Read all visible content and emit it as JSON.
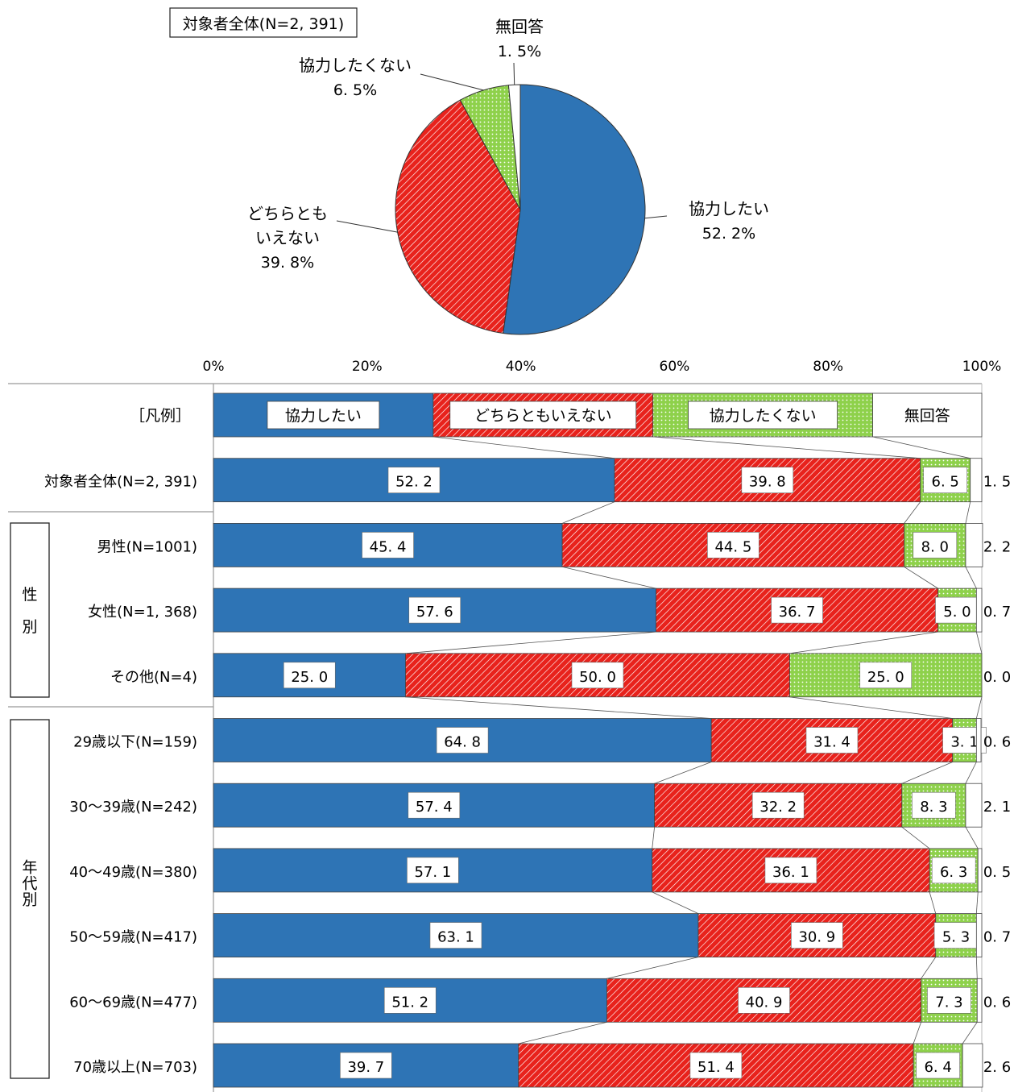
{
  "chart_data": [
    {
      "type": "pie",
      "title": "対象者全体(N=2, 391)",
      "unit": "%",
      "slices": [
        {
          "key": "yes",
          "name": "協力したい",
          "value": 52.2,
          "label_value": "52. 2%"
        },
        {
          "key": "neither",
          "name": "どちらとも\nいえない",
          "value": 39.8,
          "label_value": "39. 8%"
        },
        {
          "key": "no",
          "name": "協力したくない",
          "value": 6.5,
          "label_value": "6. 5%"
        },
        {
          "key": "na",
          "name": "無回答",
          "value": 1.5,
          "label_value": "1. 5%"
        }
      ]
    },
    {
      "type": "bar",
      "orientation": "horizontal",
      "stacked": true,
      "xlim": [
        0,
        100
      ],
      "x_ticks": [
        "0%",
        "20%",
        "40%",
        "60%",
        "80%",
        "100%"
      ],
      "legend_row_label": "［凡例］",
      "legend": [
        {
          "key": "yes",
          "name": "協力したい"
        },
        {
          "key": "neither",
          "name": "どちらともいえない"
        },
        {
          "key": "no",
          "name": "協力したくない"
        },
        {
          "key": "na",
          "name": "無回答"
        }
      ],
      "groups": [
        {
          "label": "性\n別"
        },
        {
          "label": "年\n代\n別"
        }
      ],
      "categories": [
        {
          "label": "対象者全体(N=2, 391)",
          "values": [
            52.2,
            39.8,
            6.5,
            1.5
          ],
          "display": [
            "52. 2",
            "39. 8",
            "6. 5",
            "1. 5"
          ]
        },
        {
          "label": "男性(N=1001)",
          "values": [
            45.4,
            44.5,
            8.0,
            2.2
          ],
          "display": [
            "45. 4",
            "44. 5",
            "8. 0",
            "2. 2"
          ]
        },
        {
          "label": "女性(N=1, 368)",
          "values": [
            57.6,
            36.7,
            5.0,
            0.7
          ],
          "display": [
            "57. 6",
            "36. 7",
            "5. 0",
            "0. 7"
          ]
        },
        {
          "label": "その他(N=4)",
          "values": [
            25.0,
            50.0,
            25.0,
            0.0
          ],
          "display": [
            "25. 0",
            "50. 0",
            "25. 0",
            "0. 0"
          ]
        },
        {
          "label": "29歳以下(N=159)",
          "values": [
            64.8,
            31.4,
            3.1,
            0.6
          ],
          "display": [
            "64. 8",
            "31. 4",
            "3. 1",
            "0. 6"
          ]
        },
        {
          "label": "30～39歳(N=242)",
          "values": [
            57.4,
            32.2,
            8.3,
            2.1
          ],
          "display": [
            "57. 4",
            "32. 2",
            "8. 3",
            "2. 1"
          ]
        },
        {
          "label": "40～49歳(N=380)",
          "values": [
            57.1,
            36.1,
            6.3,
            0.5
          ],
          "display": [
            "57. 1",
            "36. 1",
            "6. 3",
            "0. 5"
          ]
        },
        {
          "label": "50～59歳(N=417)",
          "values": [
            63.1,
            30.9,
            5.3,
            0.7
          ],
          "display": [
            "63. 1",
            "30. 9",
            "5. 3",
            "0. 7"
          ]
        },
        {
          "label": "60～69歳(N=477)",
          "values": [
            51.2,
            40.9,
            7.3,
            0.6
          ],
          "display": [
            "51. 2",
            "40. 9",
            "7. 3",
            "0. 6"
          ]
        },
        {
          "label": "70歳以上(N=703)",
          "values": [
            39.7,
            51.4,
            6.4,
            2.6
          ],
          "display": [
            "39. 7",
            "51. 4",
            "6. 4",
            "2. 6"
          ]
        }
      ]
    }
  ],
  "colors": {
    "yes": "#2e74b5",
    "neither": "#e8221c",
    "no": "#8ed14b",
    "na": "#ffffff"
  }
}
